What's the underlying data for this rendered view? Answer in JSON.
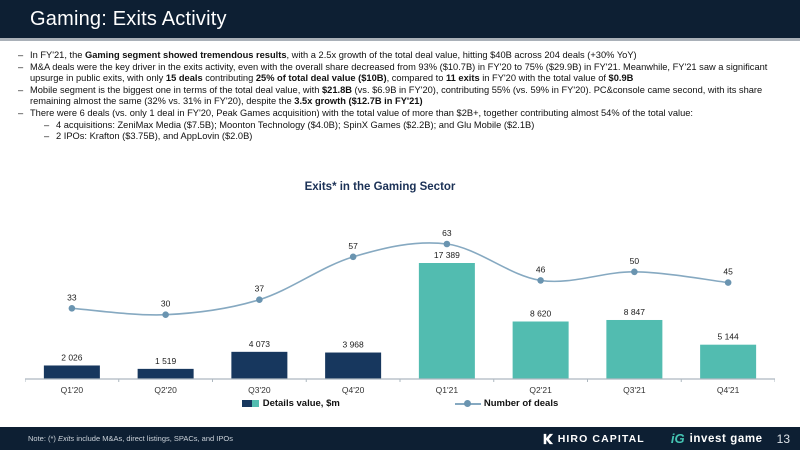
{
  "header": {
    "title": "Gaming: Exits Activity"
  },
  "bullets": [
    {
      "level": 1,
      "segments": [
        {
          "t": "In FY'21, the "
        },
        {
          "t": "Gaming segment showed tremendous results",
          "b": true
        },
        {
          "t": ", with a 2.5x growth of the total deal value, hitting $40B across 204 deals (+30% YoY)"
        }
      ]
    },
    {
      "level": 1,
      "segments": [
        {
          "t": "M&A deals were the key driver in the exits activity, even with the overall share decreased from 93% ($10.7B) in FY'20 to 75% ($29.9B) in FY'21. Meanwhile, FY'21 saw a significant upsurge in public exits, with only "
        },
        {
          "t": "15 deals",
          "b": true
        },
        {
          "t": " contributing "
        },
        {
          "t": "25% of total deal value ($10B)",
          "b": true
        },
        {
          "t": ", compared to "
        },
        {
          "t": "11 exits",
          "b": true
        },
        {
          "t": " in FY'20 with the total value of "
        },
        {
          "t": "$0.9B",
          "b": true
        }
      ]
    },
    {
      "level": 1,
      "segments": [
        {
          "t": "Mobile segment is the biggest one in terms of the total deal value, with "
        },
        {
          "t": "$21.8B",
          "b": true
        },
        {
          "t": " (vs. $6.9B in FY'20), contributing 55% (vs. 59% in FY'20). PC&console came second, with its share remaining almost the same (32% vs. 31% in FY'20), despite the "
        },
        {
          "t": "3.5x growth ($12.7B in FY'21)",
          "b": true
        }
      ]
    },
    {
      "level": 1,
      "segments": [
        {
          "t": "There were 6 deals (vs. only 1 deal in FY'20, Peak Games acquisition) with the total value of more than $2B+, together contributing almost 54% of the total value:"
        }
      ]
    },
    {
      "level": 2,
      "segments": [
        {
          "t": "4 acquisitions: ZeniMax Media ($7.5B); Moonton Technology ($4.0B); SpinX Games ($2.2B); and Glu Mobile ($2.1B)"
        }
      ]
    },
    {
      "level": 2,
      "segments": [
        {
          "t": "2 IPOs: Krafton ($3.75B), and AppLovin ($2.0B)"
        }
      ]
    }
  ],
  "chart_data": {
    "type": "combo",
    "title": "Exits* in the Gaming Sector",
    "categories": [
      "Q1'20",
      "Q2'20",
      "Q3'20",
      "Q4'20",
      "Q1'21",
      "Q2'21",
      "Q3'21",
      "Q4'21"
    ],
    "series": [
      {
        "name": "Details value, $m",
        "type": "bar",
        "values": [
          2026,
          1519,
          4073,
          3968,
          17389,
          8620,
          8847,
          5144
        ],
        "labels": [
          "2 026",
          "1 519",
          "4 073",
          "3 968",
          "17 389",
          "8 620",
          "8 847",
          "5 144"
        ],
        "point_colors": [
          "#17375e",
          "#17375e",
          "#17375e",
          "#17375e",
          "#52bcb0",
          "#52bcb0",
          "#52bcb0",
          "#52bcb0"
        ]
      },
      {
        "name": "Number of deals",
        "type": "line",
        "values": [
          33,
          30,
          37,
          57,
          63,
          46,
          50,
          45
        ],
        "labels": [
          "33",
          "30",
          "37",
          "57",
          "63",
          "46",
          "50",
          "45"
        ]
      }
    ],
    "colors": {
      "bar_2020": "#17375e",
      "bar_2021": "#52bcb0",
      "line": "#86a9c1",
      "dot": "#6a94b0",
      "axis": "#aeb8c0",
      "label": "#1a1a1a"
    },
    "legend_position": "bottom",
    "grid": false,
    "xlabel": "",
    "ylabel": ""
  },
  "legend": [
    {
      "label": "Details value, $m",
      "icon": "split-square"
    },
    {
      "label": "Number of deals",
      "icon": "line-dot"
    }
  ],
  "footer": {
    "note_segments": [
      {
        "t": "Note: (*) "
      },
      {
        "t": "Exits",
        "i": true
      },
      {
        "t": " include M&As, direct listings, SPACs, and IPOs"
      }
    ],
    "logos": {
      "hiro": "HIRO CAPITAL",
      "ig_mark": "iG",
      "invest_game": "invest game"
    },
    "page_number": "13"
  }
}
